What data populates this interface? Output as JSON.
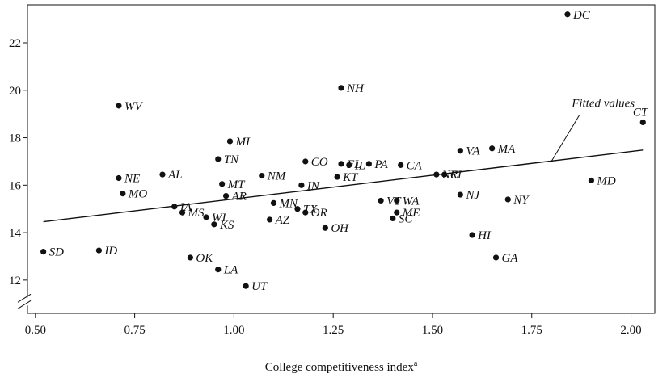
{
  "chart_data": {
    "type": "scatter",
    "title": "",
    "xlabel": "College competitiveness index",
    "xlabel_sup": "a",
    "ylabel": "",
    "xlim": [
      0.48,
      2.06
    ],
    "ylim": [
      10.6,
      23.6
    ],
    "y_axis_break": true,
    "grid": false,
    "x_ticks": [
      0.5,
      0.75,
      1.0,
      1.25,
      1.5,
      1.75,
      2.0
    ],
    "x_tick_labels": [
      "0.50",
      "0.75",
      "1.00",
      "1.25",
      "1.50",
      "1.75",
      "2.00"
    ],
    "y_ticks": [
      12,
      14,
      16,
      18,
      20,
      22
    ],
    "y_tick_labels": [
      "12",
      "14",
      "16",
      "18",
      "20",
      "22"
    ],
    "fitted_line": {
      "label": "Fitted values",
      "x": [
        0.52,
        2.03
      ],
      "y": [
        14.46,
        17.48
      ]
    },
    "points": [
      {
        "label": "DC",
        "x": 1.84,
        "y": 23.2
      },
      {
        "label": "NH",
        "x": 1.27,
        "y": 20.1
      },
      {
        "label": "WV",
        "x": 0.71,
        "y": 19.35
      },
      {
        "label": "CT",
        "x": 2.03,
        "y": 18.65
      },
      {
        "label": "MI",
        "x": 0.99,
        "y": 17.85
      },
      {
        "label": "VA",
        "x": 1.57,
        "y": 17.45
      },
      {
        "label": "MA",
        "x": 1.65,
        "y": 17.55
      },
      {
        "label": "TN",
        "x": 0.96,
        "y": 17.1
      },
      {
        "label": "CO",
        "x": 1.18,
        "y": 17.0
      },
      {
        "label": "FL",
        "x": 1.27,
        "y": 16.9
      },
      {
        "label": "IL",
        "x": 1.29,
        "y": 16.85
      },
      {
        "label": "PA",
        "x": 1.34,
        "y": 16.9
      },
      {
        "label": "CA",
        "x": 1.42,
        "y": 16.85
      },
      {
        "label": "NM",
        "x": 1.07,
        "y": 16.4
      },
      {
        "label": "AL",
        "x": 0.82,
        "y": 16.45
      },
      {
        "label": "NE",
        "x": 0.71,
        "y": 16.3
      },
      {
        "label": "KT",
        "x": 1.26,
        "y": 16.35
      },
      {
        "label": "NC",
        "x": 1.51,
        "y": 16.45
      },
      {
        "label": "RI",
        "x": 1.53,
        "y": 16.45
      },
      {
        "label": "MD",
        "x": 1.9,
        "y": 16.2
      },
      {
        "label": "MT",
        "x": 0.97,
        "y": 16.05
      },
      {
        "label": "IN",
        "x": 1.17,
        "y": 16.0
      },
      {
        "label": "MO",
        "x": 0.72,
        "y": 15.65
      },
      {
        "label": "AR",
        "x": 0.98,
        "y": 15.55
      },
      {
        "label": "NJ",
        "x": 1.57,
        "y": 15.6
      },
      {
        "label": "NY",
        "x": 1.69,
        "y": 15.4
      },
      {
        "label": "VT",
        "x": 1.37,
        "y": 15.35
      },
      {
        "label": "WA",
        "x": 1.41,
        "y": 15.35
      },
      {
        "label": "MN",
        "x": 1.1,
        "y": 15.25
      },
      {
        "label": "IA",
        "x": 0.85,
        "y": 15.1
      },
      {
        "label": "TX",
        "x": 1.16,
        "y": 15.0
      },
      {
        "label": "OR",
        "x": 1.18,
        "y": 14.85
      },
      {
        "label": "MS",
        "x": 0.87,
        "y": 14.85
      },
      {
        "label": "ME",
        "x": 1.41,
        "y": 14.85
      },
      {
        "label": "WI",
        "x": 0.93,
        "y": 14.65
      },
      {
        "label": "AZ",
        "x": 1.09,
        "y": 14.55
      },
      {
        "label": "SC",
        "x": 1.4,
        "y": 14.6
      },
      {
        "label": "KS",
        "x": 0.95,
        "y": 14.35
      },
      {
        "label": "OH",
        "x": 1.23,
        "y": 14.2
      },
      {
        "label": "HI",
        "x": 1.6,
        "y": 13.9
      },
      {
        "label": "SD",
        "x": 0.52,
        "y": 13.2
      },
      {
        "label": "ID",
        "x": 0.66,
        "y": 13.25
      },
      {
        "label": "OK",
        "x": 0.89,
        "y": 12.95
      },
      {
        "label": "GA",
        "x": 1.66,
        "y": 12.95
      },
      {
        "label": "LA",
        "x": 0.96,
        "y": 12.45
      },
      {
        "label": "UT",
        "x": 1.03,
        "y": 11.75
      }
    ]
  }
}
